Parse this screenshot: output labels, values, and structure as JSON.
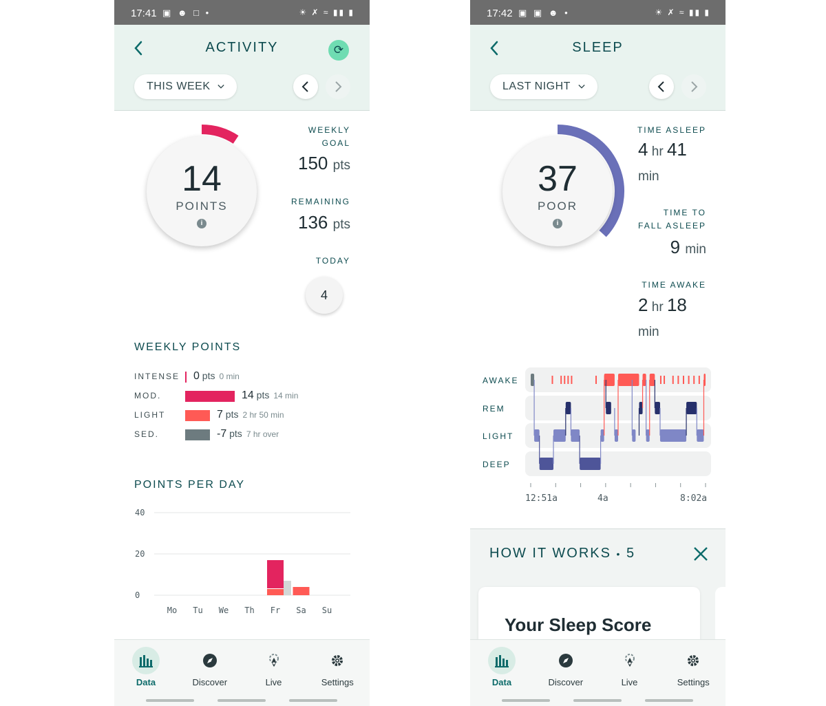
{
  "activity": {
    "status": {
      "time": "17:41"
    },
    "header": {
      "title": "ACTIVITY",
      "range": "THIS WEEK",
      "sync_icon": "sync-icon"
    },
    "score": {
      "value": "14",
      "label": "POINTS",
      "goal_fraction": 0.093
    },
    "weekly_goal": {
      "label": "WEEKLY GOAL",
      "value": "150",
      "unit": "pts"
    },
    "remaining": {
      "label": "REMAINING",
      "value": "136",
      "unit": "pts"
    },
    "today": {
      "label": "TODAY",
      "value": "4"
    },
    "weekly_points": {
      "title": "WEEKLY POINTS",
      "rows": [
        {
          "label": "INTENSE",
          "pts": "0",
          "pts_unit": "pts",
          "dur": "0",
          "dur_unit": "min",
          "color": "#e3245f",
          "fraction": 0.0
        },
        {
          "label": "MOD.",
          "pts": "14",
          "pts_unit": "pts",
          "dur": "14",
          "dur_unit": "min",
          "color": "#e3245f",
          "fraction": 1.0
        },
        {
          "label": "LIGHT",
          "pts": "7",
          "pts_unit": "pts",
          "dur": "2 hr 50",
          "dur_unit": "min",
          "color": "#ff5a55",
          "fraction": 0.5
        },
        {
          "label": "SED.",
          "pts": "-7",
          "pts_unit": "pts",
          "dur": "7 hr",
          "dur_unit": "over",
          "color": "#6d7b7f",
          "fraction": 0.5
        }
      ]
    },
    "points_per_day": {
      "title": "POINTS PER DAY"
    },
    "chart_data": {
      "type": "bar",
      "categories": [
        "Mo",
        "Tu",
        "We",
        "Th",
        "Fr",
        "Sa",
        "Su"
      ],
      "series": [
        {
          "name": "MOD.",
          "color": "#e3245f",
          "values": [
            0,
            0,
            0,
            0,
            14,
            0,
            0
          ]
        },
        {
          "name": "LIGHT",
          "color": "#ff5a55",
          "values": [
            0,
            0,
            0,
            0,
            3,
            4,
            0
          ]
        },
        {
          "name": "SED.",
          "color": "#d3d8d7",
          "values": [
            0,
            0,
            0,
            0,
            7,
            0,
            0
          ]
        }
      ],
      "yticks": [
        "40",
        "20",
        "0"
      ],
      "ylim": [
        0,
        40
      ],
      "xlabel": "",
      "ylabel": "",
      "title": ""
    },
    "nav": [
      {
        "label": "Data",
        "icon": "bar-chart-icon",
        "active": true
      },
      {
        "label": "Discover",
        "icon": "compass-icon",
        "active": false
      },
      {
        "label": "Live",
        "icon": "live-icon",
        "active": false
      },
      {
        "label": "Settings",
        "icon": "gear-icon",
        "active": false
      }
    ]
  },
  "sleep": {
    "status": {
      "time": "17:42"
    },
    "header": {
      "title": "SLEEP",
      "range": "LAST NIGHT"
    },
    "score": {
      "value": "37",
      "label": "POOR",
      "score_fraction": 0.37
    },
    "time_asleep": {
      "label": "TIME ASLEEP",
      "hours": "4",
      "hr_unit": "hr",
      "mins": "41",
      "min_unit": "min"
    },
    "time_to_fall": {
      "label1": "TIME TO",
      "label2": "FALL ASLEEP",
      "value": "9",
      "unit": "min"
    },
    "time_awake": {
      "label": "TIME AWAKE",
      "hours": "2",
      "hr_unit": "hr",
      "mins": "18",
      "min_unit": "min"
    },
    "hypnogram": {
      "stages": [
        "AWAKE",
        "REM",
        "LIGHT",
        "DEEP"
      ],
      "start": "12:51a",
      "mid": "4a",
      "end": "8:02a",
      "segments": [
        [
          "AWAKE",
          0.0,
          0.02
        ],
        [
          "LIGHT",
          0.02,
          0.05
        ],
        [
          "DEEP",
          0.05,
          0.13
        ],
        [
          "LIGHT",
          0.13,
          0.2
        ],
        [
          "REM",
          0.2,
          0.23
        ],
        [
          "LIGHT",
          0.23,
          0.28
        ],
        [
          "DEEP",
          0.28,
          0.4
        ],
        [
          "LIGHT",
          0.4,
          0.42
        ],
        [
          "AWAKE",
          0.42,
          0.48
        ],
        [
          "REM",
          0.43,
          0.46
        ],
        [
          "LIGHT",
          0.48,
          0.5
        ],
        [
          "AWAKE",
          0.5,
          0.62
        ],
        [
          "LIGHT",
          0.58,
          0.6
        ],
        [
          "REM",
          0.62,
          0.64
        ],
        [
          "AWAKE",
          0.64,
          0.66
        ],
        [
          "LIGHT",
          0.66,
          0.68
        ],
        [
          "AWAKE",
          0.68,
          0.71
        ],
        [
          "REM",
          0.71,
          0.74
        ],
        [
          "LIGHT",
          0.74,
          0.89
        ],
        [
          "REM",
          0.89,
          0.95
        ],
        [
          "LIGHT",
          0.95,
          0.99
        ],
        [
          "AWAKE",
          0.99,
          1.0
        ]
      ],
      "awake_ticks": [
        0.12,
        0.17,
        0.19,
        0.21,
        0.23,
        0.37,
        0.42,
        0.55,
        0.61,
        0.74,
        0.76,
        0.81,
        0.84,
        0.87,
        0.9,
        0.93,
        0.96
      ]
    },
    "how_it_works": {
      "title": "HOW IT WORKS",
      "sep": "•",
      "count": "5",
      "card_title": "Your Sleep Score"
    },
    "nav": [
      {
        "label": "Data",
        "icon": "bar-chart-icon",
        "active": true
      },
      {
        "label": "Discover",
        "icon": "compass-icon",
        "active": false
      },
      {
        "label": "Live",
        "icon": "live-icon",
        "active": false
      },
      {
        "label": "Settings",
        "icon": "gear-icon",
        "active": false
      }
    ]
  },
  "colors": {
    "header_bg": "#e9f3ef",
    "teal_dark": "#0d4b4f",
    "activity_ring": "#e3245f",
    "sleep_ring": "#6a70b8",
    "awake": "#ff5a55",
    "rem": "#26306b",
    "light": "#7f87c6",
    "deep": "#4e5599"
  }
}
